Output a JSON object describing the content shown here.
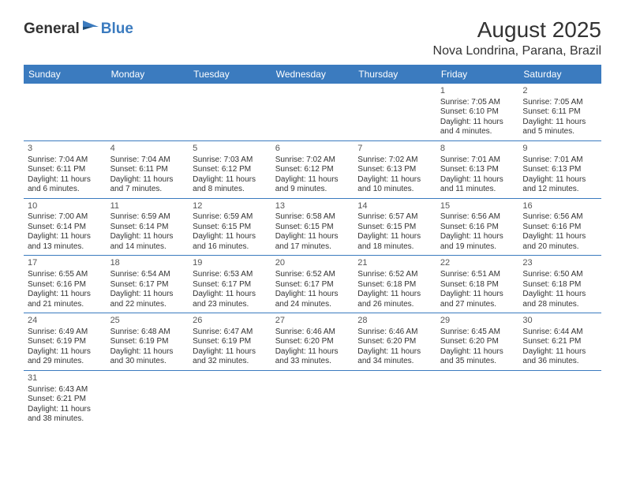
{
  "logo": {
    "general": "General",
    "blue": "Blue"
  },
  "title": "August 2025",
  "location": "Nova Londrina, Parana, Brazil",
  "colors": {
    "header_bg": "#3b7bbf",
    "header_text": "#ffffff",
    "text": "#333333",
    "border": "#3b7bbf",
    "logo_blue": "#3b7bbf"
  },
  "day_names": [
    "Sunday",
    "Monday",
    "Tuesday",
    "Wednesday",
    "Thursday",
    "Friday",
    "Saturday"
  ],
  "weeks": [
    [
      null,
      null,
      null,
      null,
      null,
      {
        "n": "1",
        "sr": "Sunrise: 7:05 AM",
        "ss": "Sunset: 6:10 PM",
        "d1": "Daylight: 11 hours",
        "d2": "and 4 minutes."
      },
      {
        "n": "2",
        "sr": "Sunrise: 7:05 AM",
        "ss": "Sunset: 6:11 PM",
        "d1": "Daylight: 11 hours",
        "d2": "and 5 minutes."
      }
    ],
    [
      {
        "n": "3",
        "sr": "Sunrise: 7:04 AM",
        "ss": "Sunset: 6:11 PM",
        "d1": "Daylight: 11 hours",
        "d2": "and 6 minutes."
      },
      {
        "n": "4",
        "sr": "Sunrise: 7:04 AM",
        "ss": "Sunset: 6:11 PM",
        "d1": "Daylight: 11 hours",
        "d2": "and 7 minutes."
      },
      {
        "n": "5",
        "sr": "Sunrise: 7:03 AM",
        "ss": "Sunset: 6:12 PM",
        "d1": "Daylight: 11 hours",
        "d2": "and 8 minutes."
      },
      {
        "n": "6",
        "sr": "Sunrise: 7:02 AM",
        "ss": "Sunset: 6:12 PM",
        "d1": "Daylight: 11 hours",
        "d2": "and 9 minutes."
      },
      {
        "n": "7",
        "sr": "Sunrise: 7:02 AM",
        "ss": "Sunset: 6:13 PM",
        "d1": "Daylight: 11 hours",
        "d2": "and 10 minutes."
      },
      {
        "n": "8",
        "sr": "Sunrise: 7:01 AM",
        "ss": "Sunset: 6:13 PM",
        "d1": "Daylight: 11 hours",
        "d2": "and 11 minutes."
      },
      {
        "n": "9",
        "sr": "Sunrise: 7:01 AM",
        "ss": "Sunset: 6:13 PM",
        "d1": "Daylight: 11 hours",
        "d2": "and 12 minutes."
      }
    ],
    [
      {
        "n": "10",
        "sr": "Sunrise: 7:00 AM",
        "ss": "Sunset: 6:14 PM",
        "d1": "Daylight: 11 hours",
        "d2": "and 13 minutes."
      },
      {
        "n": "11",
        "sr": "Sunrise: 6:59 AM",
        "ss": "Sunset: 6:14 PM",
        "d1": "Daylight: 11 hours",
        "d2": "and 14 minutes."
      },
      {
        "n": "12",
        "sr": "Sunrise: 6:59 AM",
        "ss": "Sunset: 6:15 PM",
        "d1": "Daylight: 11 hours",
        "d2": "and 16 minutes."
      },
      {
        "n": "13",
        "sr": "Sunrise: 6:58 AM",
        "ss": "Sunset: 6:15 PM",
        "d1": "Daylight: 11 hours",
        "d2": "and 17 minutes."
      },
      {
        "n": "14",
        "sr": "Sunrise: 6:57 AM",
        "ss": "Sunset: 6:15 PM",
        "d1": "Daylight: 11 hours",
        "d2": "and 18 minutes."
      },
      {
        "n": "15",
        "sr": "Sunrise: 6:56 AM",
        "ss": "Sunset: 6:16 PM",
        "d1": "Daylight: 11 hours",
        "d2": "and 19 minutes."
      },
      {
        "n": "16",
        "sr": "Sunrise: 6:56 AM",
        "ss": "Sunset: 6:16 PM",
        "d1": "Daylight: 11 hours",
        "d2": "and 20 minutes."
      }
    ],
    [
      {
        "n": "17",
        "sr": "Sunrise: 6:55 AM",
        "ss": "Sunset: 6:16 PM",
        "d1": "Daylight: 11 hours",
        "d2": "and 21 minutes."
      },
      {
        "n": "18",
        "sr": "Sunrise: 6:54 AM",
        "ss": "Sunset: 6:17 PM",
        "d1": "Daylight: 11 hours",
        "d2": "and 22 minutes."
      },
      {
        "n": "19",
        "sr": "Sunrise: 6:53 AM",
        "ss": "Sunset: 6:17 PM",
        "d1": "Daylight: 11 hours",
        "d2": "and 23 minutes."
      },
      {
        "n": "20",
        "sr": "Sunrise: 6:52 AM",
        "ss": "Sunset: 6:17 PM",
        "d1": "Daylight: 11 hours",
        "d2": "and 24 minutes."
      },
      {
        "n": "21",
        "sr": "Sunrise: 6:52 AM",
        "ss": "Sunset: 6:18 PM",
        "d1": "Daylight: 11 hours",
        "d2": "and 26 minutes."
      },
      {
        "n": "22",
        "sr": "Sunrise: 6:51 AM",
        "ss": "Sunset: 6:18 PM",
        "d1": "Daylight: 11 hours",
        "d2": "and 27 minutes."
      },
      {
        "n": "23",
        "sr": "Sunrise: 6:50 AM",
        "ss": "Sunset: 6:18 PM",
        "d1": "Daylight: 11 hours",
        "d2": "and 28 minutes."
      }
    ],
    [
      {
        "n": "24",
        "sr": "Sunrise: 6:49 AM",
        "ss": "Sunset: 6:19 PM",
        "d1": "Daylight: 11 hours",
        "d2": "and 29 minutes."
      },
      {
        "n": "25",
        "sr": "Sunrise: 6:48 AM",
        "ss": "Sunset: 6:19 PM",
        "d1": "Daylight: 11 hours",
        "d2": "and 30 minutes."
      },
      {
        "n": "26",
        "sr": "Sunrise: 6:47 AM",
        "ss": "Sunset: 6:19 PM",
        "d1": "Daylight: 11 hours",
        "d2": "and 32 minutes."
      },
      {
        "n": "27",
        "sr": "Sunrise: 6:46 AM",
        "ss": "Sunset: 6:20 PM",
        "d1": "Daylight: 11 hours",
        "d2": "and 33 minutes."
      },
      {
        "n": "28",
        "sr": "Sunrise: 6:46 AM",
        "ss": "Sunset: 6:20 PM",
        "d1": "Daylight: 11 hours",
        "d2": "and 34 minutes."
      },
      {
        "n": "29",
        "sr": "Sunrise: 6:45 AM",
        "ss": "Sunset: 6:20 PM",
        "d1": "Daylight: 11 hours",
        "d2": "and 35 minutes."
      },
      {
        "n": "30",
        "sr": "Sunrise: 6:44 AM",
        "ss": "Sunset: 6:21 PM",
        "d1": "Daylight: 11 hours",
        "d2": "and 36 minutes."
      }
    ],
    [
      {
        "n": "31",
        "sr": "Sunrise: 6:43 AM",
        "ss": "Sunset: 6:21 PM",
        "d1": "Daylight: 11 hours",
        "d2": "and 38 minutes."
      },
      null,
      null,
      null,
      null,
      null,
      null
    ]
  ]
}
